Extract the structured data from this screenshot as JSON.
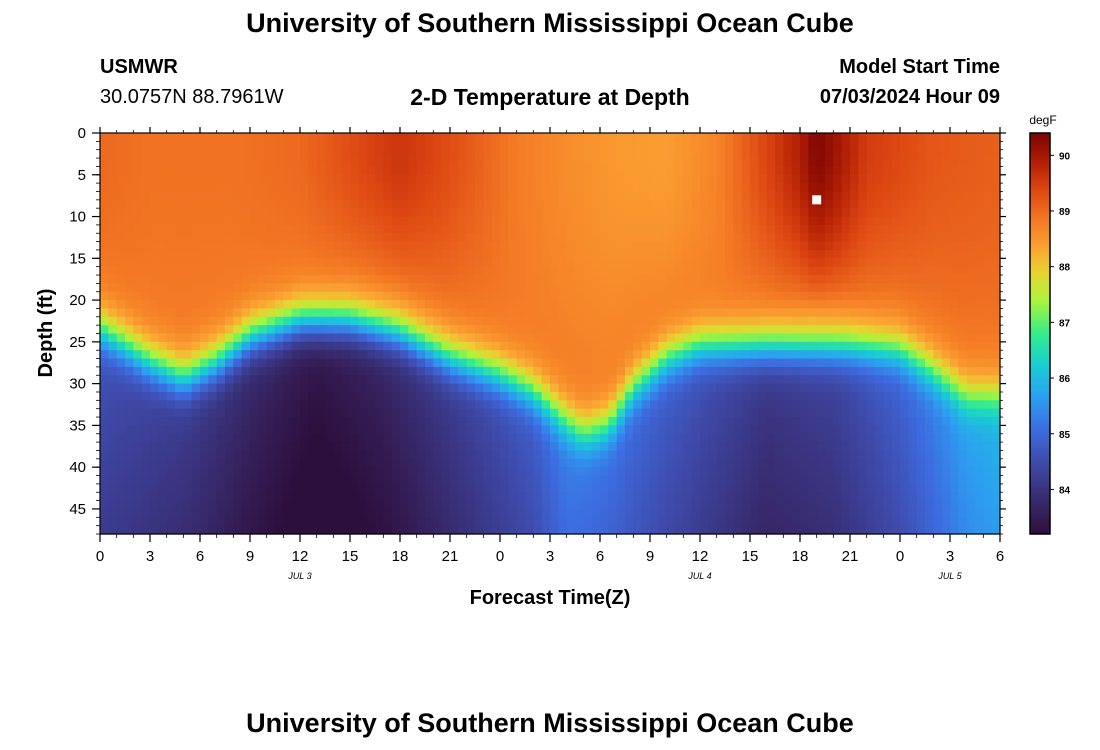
{
  "page": {
    "title": "University of Southern Mississippi Ocean Cube",
    "footer_title": "University of Southern Mississippi Ocean Cube",
    "station": "USMWR",
    "location": "30.0757N  88.7961W",
    "subtitle": "2-D Temperature at Depth",
    "model_start_label": "Model Start Time",
    "model_start_value": "07/03/2024 Hour 09"
  },
  "chart_data": {
    "type": "heatmap",
    "title": "2-D Temperature at Depth",
    "xlabel": "Forecast Time(Z)",
    "ylabel": "Depth (ft)",
    "x_range_hours": [
      0,
      54
    ],
    "x_ticks": [
      "0",
      "3",
      "6",
      "9",
      "12",
      "15",
      "18",
      "21",
      "0",
      "3",
      "6",
      "9",
      "12",
      "15",
      "18",
      "21",
      "0",
      "3",
      "6"
    ],
    "y_range_ft": [
      0,
      48
    ],
    "y_ticks": [
      "0",
      "5",
      "10",
      "15",
      "20",
      "25",
      "30",
      "35",
      "40",
      "45"
    ],
    "date_labels": [
      {
        "text": "JUL 3",
        "hour": 12
      },
      {
        "text": "JUL 4",
        "hour": 36
      },
      {
        "text": "JUL 5",
        "hour": 51
      }
    ],
    "colorbar": {
      "units": "degF",
      "min": 83.2,
      "max": 90.4,
      "ticks": [
        "90",
        "89",
        "88",
        "87",
        "86",
        "85",
        "84"
      ],
      "stops": [
        {
          "v": 0.0,
          "c": "#2d0f3c"
        },
        {
          "v": 0.06,
          "c": "#36225e"
        },
        {
          "v": 0.18,
          "c": "#3f4bab"
        },
        {
          "v": 0.26,
          "c": "#3d6ce0"
        },
        {
          "v": 0.34,
          "c": "#2c9ff0"
        },
        {
          "v": 0.42,
          "c": "#18ccd4"
        },
        {
          "v": 0.5,
          "c": "#35ec8c"
        },
        {
          "v": 0.58,
          "c": "#a8f43c"
        },
        {
          "v": 0.65,
          "c": "#e6d530"
        },
        {
          "v": 0.71,
          "c": "#fba533"
        },
        {
          "v": 0.78,
          "c": "#f47a25"
        },
        {
          "v": 0.86,
          "c": "#dc4512"
        },
        {
          "v": 0.93,
          "c": "#b01e05"
        },
        {
          "v": 1.0,
          "c": "#7a0403"
        }
      ]
    },
    "field": {
      "thermocline_depth_ft": [
        {
          "h": 0,
          "d": 23.5
        },
        {
          "h": 3,
          "d": 27.5
        },
        {
          "h": 5,
          "d": 29.5
        },
        {
          "h": 7,
          "d": 27.5
        },
        {
          "h": 9,
          "d": 24.5
        },
        {
          "h": 12,
          "d": 22.5
        },
        {
          "h": 15,
          "d": 22.5
        },
        {
          "h": 18,
          "d": 24
        },
        {
          "h": 21,
          "d": 27
        },
        {
          "h": 24,
          "d": 29
        },
        {
          "h": 26,
          "d": 31
        },
        {
          "h": 28,
          "d": 34.5
        },
        {
          "h": 29,
          "d": 36
        },
        {
          "h": 30.5,
          "d": 35
        },
        {
          "h": 32,
          "d": 30.5
        },
        {
          "h": 34,
          "d": 27
        },
        {
          "h": 36,
          "d": 25.5
        },
        {
          "h": 39,
          "d": 25.5
        },
        {
          "h": 42,
          "d": 25.5
        },
        {
          "h": 45,
          "d": 25.5
        },
        {
          "h": 48,
          "d": 26
        },
        {
          "h": 50,
          "d": 28.5
        },
        {
          "h": 52,
          "d": 31.5
        },
        {
          "h": 54,
          "d": 31.5
        }
      ],
      "deep_temp_degF": [
        {
          "h": 0,
          "t": 84.5
        },
        {
          "h": 6,
          "t": 84.0
        },
        {
          "h": 10,
          "t": 83.6
        },
        {
          "h": 13,
          "t": 83.3
        },
        {
          "h": 17,
          "t": 83.6
        },
        {
          "h": 22,
          "t": 84.2
        },
        {
          "h": 26,
          "t": 84.7
        },
        {
          "h": 28,
          "t": 85.2
        },
        {
          "h": 31,
          "t": 85.0
        },
        {
          "h": 35,
          "t": 84.6
        },
        {
          "h": 40,
          "t": 84.0
        },
        {
          "h": 44,
          "t": 84.2
        },
        {
          "h": 48,
          "t": 84.8
        },
        {
          "h": 52,
          "t": 85.6
        },
        {
          "h": 54,
          "t": 85.8
        }
      ],
      "surface_temp_degF": [
        {
          "h": 0,
          "t": 89.0
        },
        {
          "h": 3,
          "t": 88.9
        },
        {
          "h": 8,
          "t": 88.9
        },
        {
          "h": 12,
          "t": 89.0
        },
        {
          "h": 15,
          "t": 89.3
        },
        {
          "h": 18,
          "t": 89.6
        },
        {
          "h": 21,
          "t": 89.3
        },
        {
          "h": 25,
          "t": 88.8
        },
        {
          "h": 28,
          "t": 88.6
        },
        {
          "h": 31,
          "t": 88.45
        },
        {
          "h": 34,
          "t": 88.4
        },
        {
          "h": 37,
          "t": 88.7
        },
        {
          "h": 40,
          "t": 89.4
        },
        {
          "h": 42,
          "t": 89.9
        },
        {
          "h": 43,
          "t": 90.35
        },
        {
          "h": 44,
          "t": 90.1
        },
        {
          "h": 46,
          "t": 89.5
        },
        {
          "h": 50,
          "t": 89.2
        },
        {
          "h": 54,
          "t": 89.1
        }
      ],
      "marker": {
        "hour": 43,
        "depth_ft": 8
      }
    }
  }
}
